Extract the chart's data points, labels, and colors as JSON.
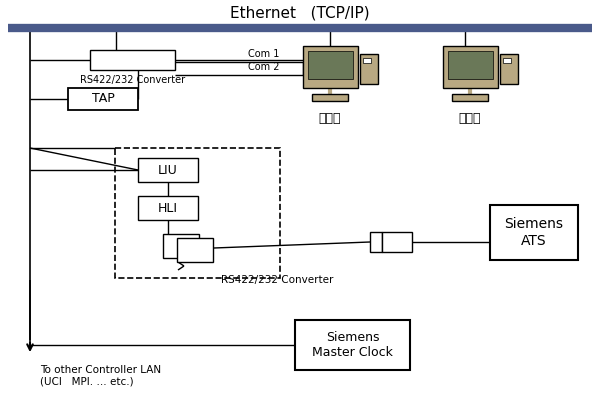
{
  "title": "Ethernet   (TCP/IP)",
  "ethernet_bar_color": "#4a5a8a",
  "bg_color": "#ffffff",
  "converter1_label": "RS422/232 Converter",
  "tap_label": "TAP",
  "com1_label": "Com 1",
  "com2_label": "Com 2",
  "workstation_label": "工作站",
  "backup_label": "备份站",
  "liu_label": "LIU",
  "hli_label": "HLI",
  "converter2_label": "RS422/232 Converter",
  "siemens_ats_label": "Siemens\nATS",
  "siemens_clock_label": "Siemens\nMaster Clock",
  "other_lan_label": "To other Controller LAN\n(UCI   MPI. … etc.)"
}
